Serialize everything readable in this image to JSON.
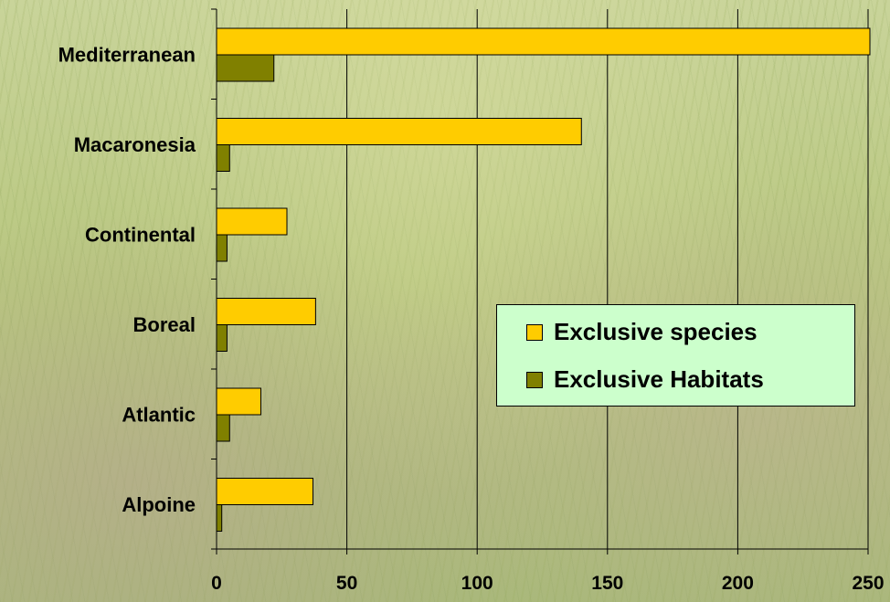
{
  "chart_data": {
    "type": "bar",
    "orientation": "horizontal",
    "categories": [
      "Mediterranean",
      "Macaronesia",
      "Continental",
      "Boreal",
      "Atlantic",
      "Alpoine"
    ],
    "series": [
      {
        "name": "Exclusive species",
        "color": "#ffcc00",
        "values": [
          252,
          140,
          27,
          38,
          17,
          37
        ]
      },
      {
        "name": "Exclusive Habitats",
        "color": "#808000",
        "values": [
          22,
          5,
          4,
          4,
          5,
          2
        ]
      }
    ],
    "xticks": [
      0,
      50,
      100,
      150,
      200,
      250
    ],
    "xlim": [
      0,
      250
    ],
    "grid": true,
    "legend_position": "right"
  }
}
